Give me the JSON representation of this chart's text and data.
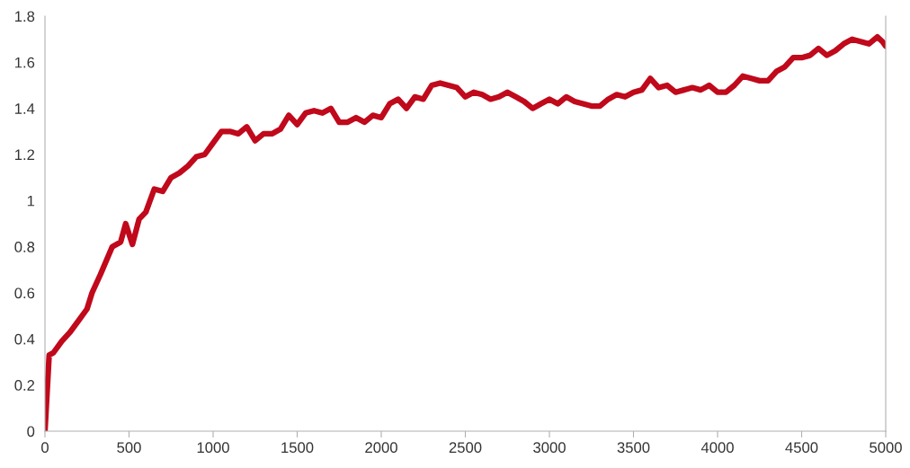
{
  "chart_data": {
    "type": "line",
    "x": [
      0,
      25,
      50,
      100,
      150,
      200,
      250,
      280,
      330,
      400,
      450,
      480,
      520,
      560,
      600,
      650,
      700,
      750,
      800,
      850,
      900,
      950,
      1000,
      1050,
      1100,
      1150,
      1200,
      1250,
      1300,
      1350,
      1400,
      1450,
      1500,
      1550,
      1600,
      1650,
      1700,
      1750,
      1800,
      1850,
      1900,
      1950,
      2000,
      2050,
      2100,
      2150,
      2200,
      2250,
      2300,
      2350,
      2400,
      2450,
      2500,
      2550,
      2600,
      2650,
      2700,
      2750,
      2800,
      2850,
      2900,
      2950,
      3000,
      3050,
      3100,
      3150,
      3200,
      3250,
      3300,
      3350,
      3400,
      3450,
      3500,
      3550,
      3600,
      3650,
      3700,
      3750,
      3800,
      3850,
      3900,
      3950,
      4000,
      4050,
      4100,
      4150,
      4200,
      4250,
      4300,
      4350,
      4400,
      4450,
      4500,
      4550,
      4600,
      4650,
      4700,
      4750,
      4800,
      4850,
      4900,
      4950,
      4980,
      5000
    ],
    "series": [
      {
        "color": "#c0091b",
        "values": [
          0,
          0.33,
          0.34,
          0.39,
          0.43,
          0.48,
          0.53,
          0.6,
          0.68,
          0.8,
          0.82,
          0.9,
          0.81,
          0.92,
          0.95,
          1.05,
          1.04,
          1.1,
          1.12,
          1.15,
          1.19,
          1.2,
          1.25,
          1.3,
          1.3,
          1.29,
          1.32,
          1.26,
          1.29,
          1.29,
          1.31,
          1.37,
          1.33,
          1.38,
          1.39,
          1.38,
          1.4,
          1.34,
          1.34,
          1.36,
          1.34,
          1.37,
          1.36,
          1.42,
          1.44,
          1.4,
          1.45,
          1.44,
          1.5,
          1.51,
          1.5,
          1.49,
          1.45,
          1.47,
          1.46,
          1.44,
          1.45,
          1.47,
          1.45,
          1.43,
          1.4,
          1.42,
          1.44,
          1.42,
          1.45,
          1.43,
          1.42,
          1.41,
          1.41,
          1.44,
          1.46,
          1.45,
          1.47,
          1.48,
          1.53,
          1.49,
          1.5,
          1.47,
          1.48,
          1.49,
          1.48,
          1.5,
          1.47,
          1.47,
          1.5,
          1.54,
          1.53,
          1.52,
          1.52,
          1.56,
          1.58,
          1.62,
          1.62,
          1.63,
          1.66,
          1.63,
          1.65,
          1.68,
          1.7,
          1.69,
          1.68,
          1.71,
          1.69,
          1.67
        ]
      }
    ],
    "xlim": [
      0,
      5000
    ],
    "xticks": [
      0,
      500,
      1000,
      1500,
      2000,
      2500,
      3000,
      3500,
      4000,
      4500,
      5000
    ],
    "ylim": [
      0,
      1.8
    ],
    "yticks": [
      0,
      {
        "value": 0.2,
        "label": "0.2"
      },
      {
        "value": 0.4,
        "label": "0.4"
      },
      {
        "value": 0.6,
        "label": "0.6"
      },
      {
        "value": 0.8,
        "label": "0.8"
      },
      1,
      {
        "value": 1.2,
        "label": "1.2"
      },
      {
        "value": 1.4,
        "label": "1.4"
      },
      {
        "value": 1.6,
        "label": "1.6"
      },
      {
        "value": 1.8,
        "label": "1.8"
      }
    ],
    "grid": false,
    "line_style": "solid",
    "marker": "none"
  }
}
